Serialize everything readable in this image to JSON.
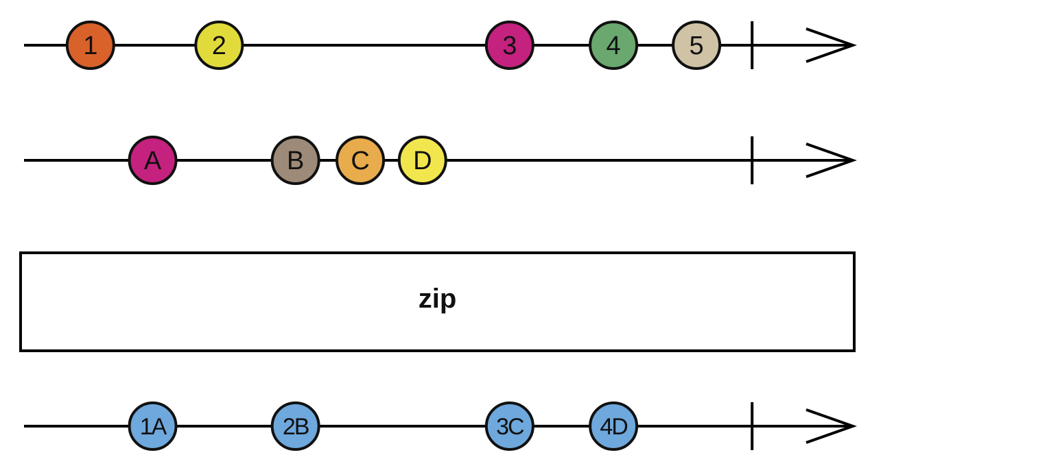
{
  "operator": {
    "label": "zip"
  },
  "timelines": [
    {
      "id": "source-a",
      "marbles": [
        {
          "label": "1",
          "color": "#d9622b",
          "t": 0.08
        },
        {
          "label": "2",
          "color": "#e0db3a",
          "t": 0.235
        },
        {
          "label": "3",
          "color": "#c4227e",
          "t": 0.585
        },
        {
          "label": "4",
          "color": "#6aa86f",
          "t": 0.71
        },
        {
          "label": "5",
          "color": "#cfc2a5",
          "t": 0.81
        }
      ],
      "completion_t": 0.877
    },
    {
      "id": "source-b",
      "marbles": [
        {
          "label": "A",
          "color": "#c4227e",
          "t": 0.155
        },
        {
          "label": "B",
          "color": "#9d8a78",
          "t": 0.327
        },
        {
          "label": "C",
          "color": "#e8ac4c",
          "t": 0.405
        },
        {
          "label": "D",
          "color": "#f2e64e",
          "t": 0.48
        }
      ],
      "completion_t": 0.877
    },
    {
      "id": "output",
      "marbles": [
        {
          "label": "1A",
          "color": "#6ea8dc",
          "t": 0.155
        },
        {
          "label": "2B",
          "color": "#6ea8dc",
          "t": 0.327
        },
        {
          "label": "3C",
          "color": "#6ea8dc",
          "t": 0.585
        },
        {
          "label": "4D",
          "color": "#6ea8dc",
          "t": 0.71
        }
      ],
      "completion_t": 0.877
    }
  ]
}
